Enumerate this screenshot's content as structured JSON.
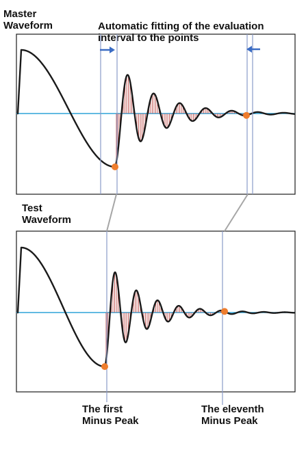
{
  "labels": {
    "master_line1": "Master",
    "master_line2": "Waveform",
    "fit_line1": "Automatic fitting of the evaluation",
    "fit_line2": "interval to the points",
    "test_line1": "Test",
    "test_line2": "Waveform",
    "first_line1": "The first",
    "first_line2": "Minus Peak",
    "eleventh_line1": "The eleventh",
    "eleventh_line2": "Minus Peak"
  },
  "colors": {
    "waveform": "#1a1a1a",
    "baseline": "#2ea3d8",
    "hatch": "#c0504d",
    "marker": "#ee7d2e",
    "guide": "#8a9bc8",
    "connector": "#a6a6a6",
    "arrow": "#3b6cc4"
  },
  "icons": [
    "arrow-right-icon",
    "arrow-left-icon"
  ]
}
